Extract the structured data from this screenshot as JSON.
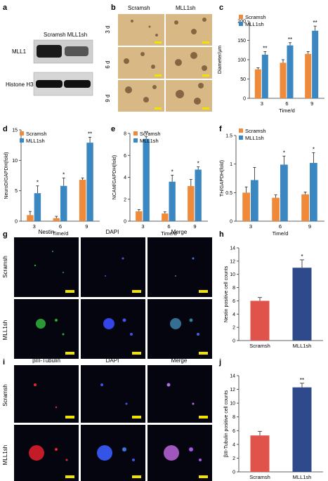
{
  "colors": {
    "scramsh": "#ee8a3a",
    "mll1sh": "#3a87c2",
    "scramsh_bar2": "#e0534b",
    "mll1sh_bar2": "#2f4a8a",
    "axis": "#333333",
    "scale_bar": "#f2e200",
    "blot_bg": "#d2d2d2",
    "bright_bg": "#d8b986",
    "fluor_bg": "#050510"
  },
  "legend": {
    "scramsh": "Scramsh",
    "mll1sh": "MLL1sh"
  },
  "panel_a": {
    "letter": "a",
    "lanes": "Scramsh MLL1sh",
    "row1": "MLL1",
    "row2": "Histone H3"
  },
  "panel_b": {
    "letter": "b",
    "col1": "Scramsh",
    "col2": "MLL1sh",
    "rows": [
      "3 d",
      "6 d",
      "9 d"
    ]
  },
  "panel_g": {
    "letter": "g",
    "cols": [
      "Nestin",
      "DAPI",
      "Merge"
    ],
    "rows": [
      "Scramsh",
      "MLL1sh"
    ]
  },
  "panel_i": {
    "letter": "i",
    "cols": [
      "βIII-Tubulin",
      "DAPI",
      "Merge"
    ],
    "rows": [
      "Scramsh",
      "MLL1sh"
    ]
  },
  "chart_data": [
    {
      "id": "c",
      "letter": "c",
      "type": "bar",
      "categories": [
        "3",
        "6",
        "9"
      ],
      "xlabel": "Time/d",
      "ylabel": "Diameter/µm",
      "ylim": [
        0,
        200
      ],
      "yticks": [
        0,
        50,
        100,
        150,
        200
      ],
      "series": [
        {
          "name": "Scramsh",
          "values": [
            75,
            92,
            115
          ],
          "err": [
            4,
            8,
            6
          ]
        },
        {
          "name": "MLL1sh",
          "values": [
            113,
            137,
            175
          ],
          "err": [
            8,
            7,
            12
          ]
        }
      ],
      "annotations": [
        "**",
        "**",
        "**"
      ]
    },
    {
      "id": "d",
      "letter": "d",
      "type": "bar",
      "categories": [
        "3",
        "6",
        "9"
      ],
      "xlabel": "Time/d",
      "ylabel": "NeuroD/GAPDH(fold)",
      "ylim": [
        0,
        15
      ],
      "yticks": [
        0,
        5,
        10,
        15
      ],
      "series": [
        {
          "name": "Scramsh",
          "values": [
            1,
            0.5,
            6.8
          ],
          "err": [
            0.6,
            0.3,
            0.3
          ]
        },
        {
          "name": "MLL1sh",
          "values": [
            4.6,
            5.8,
            12.9
          ],
          "err": [
            1.2,
            1.3,
            0.9
          ]
        }
      ],
      "annotations": [
        "*",
        "*",
        "**"
      ]
    },
    {
      "id": "e",
      "letter": "e",
      "type": "bar",
      "categories": [
        "3",
        "6",
        "9"
      ],
      "xlabel": "Time/d",
      "ylabel": "NCAM/GAPDH(fold)",
      "ylim": [
        0,
        8
      ],
      "yticks": [
        0,
        2,
        4,
        6,
        8
      ],
      "series": [
        {
          "name": "Scramsh",
          "values": [
            0.9,
            0.7,
            3.2
          ],
          "err": [
            0.15,
            0.15,
            0.6
          ]
        },
        {
          "name": "MLL1sh",
          "values": [
            7.5,
            3.6,
            4.7
          ],
          "err": [
            0.2,
            0.6,
            0.25
          ]
        }
      ],
      "annotations": [
        "**",
        "*",
        "*"
      ]
    },
    {
      "id": "f",
      "letter": "f",
      "type": "bar",
      "categories": [
        "3",
        "6",
        "9"
      ],
      "xlabel": "Time/d",
      "ylabel": "TH/GAPDH(fold)",
      "ylim": [
        0,
        1.5
      ],
      "yticks": [
        0,
        0.5,
        1,
        1.5
      ],
      "series": [
        {
          "name": "Scramsh",
          "values": [
            0.5,
            0.41,
            0.47
          ],
          "err": [
            0.1,
            0.05,
            0.04
          ]
        },
        {
          "name": "MLL1sh",
          "values": [
            0.72,
            0.99,
            1.02
          ],
          "err": [
            0.22,
            0.15,
            0.18
          ]
        }
      ],
      "annotations": [
        "",
        "*",
        "*"
      ]
    },
    {
      "id": "h",
      "letter": "h",
      "type": "bar",
      "categories": [
        "Scramsh",
        "MLL1sh"
      ],
      "xlabel": "",
      "ylabel": "Nestin positive cell counts",
      "ylim": [
        0,
        14
      ],
      "yticks": [
        0,
        2,
        4,
        6,
        8,
        10,
        12,
        14
      ],
      "values": [
        6,
        11
      ],
      "err": [
        0.5,
        1.2
      ],
      "annotations": [
        "",
        "*"
      ]
    },
    {
      "id": "j",
      "letter": "j",
      "type": "bar",
      "categories": [
        "Scramsh",
        "MLL1sh"
      ],
      "xlabel": "",
      "ylabel": "βIII-Tubulin positive cell counts",
      "ylim": [
        0,
        14
      ],
      "yticks": [
        0,
        2,
        4,
        6,
        8,
        10,
        12,
        14
      ],
      "values": [
        5.3,
        12.3
      ],
      "err": [
        0.6,
        0.6
      ],
      "annotations": [
        "",
        "**"
      ]
    }
  ]
}
